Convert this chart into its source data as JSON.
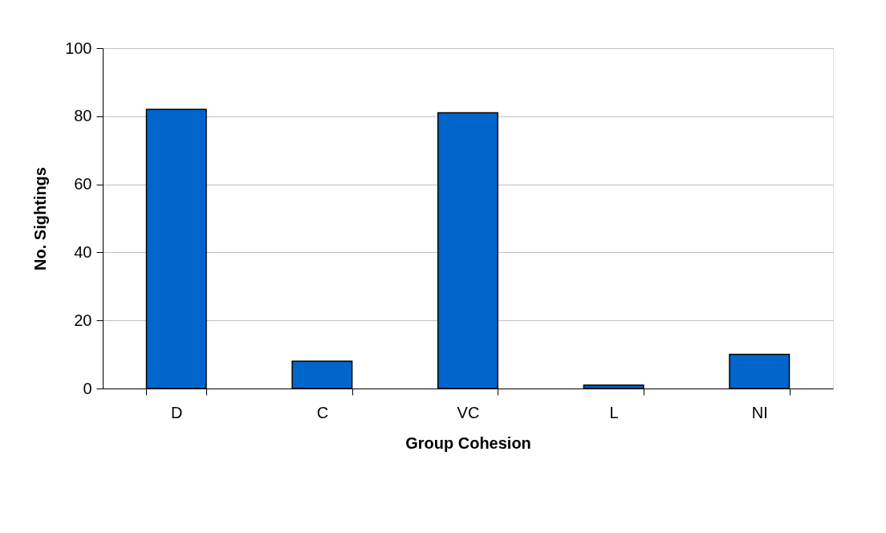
{
  "chart_data": {
    "type": "bar",
    "xlabel": "Group Cohesion",
    "ylabel": "No. Sightings",
    "categories": [
      "D",
      "C",
      "VC",
      "L",
      "NI"
    ],
    "values": [
      82,
      8,
      81,
      1,
      10
    ],
    "color": "#0066cc",
    "ylim": [
      0,
      100
    ],
    "yticks": [
      0,
      20,
      40,
      60,
      80,
      100
    ],
    "grid": "y"
  }
}
